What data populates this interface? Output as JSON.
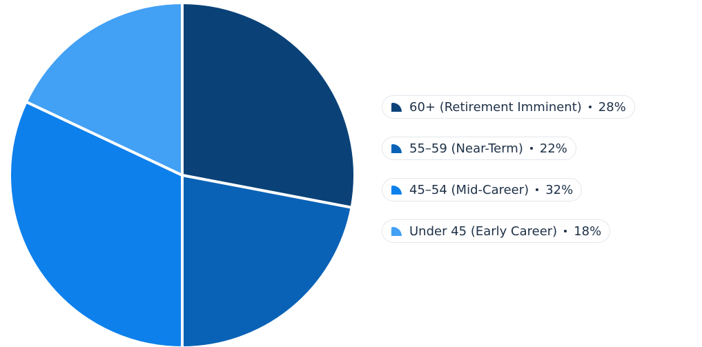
{
  "chart_data": {
    "type": "pie",
    "categories": [
      "60+ (Retirement Imminent)",
      "55–59 (Near-Term)",
      "45–54 (Mid-Career)",
      "Under 45 (Early Career)"
    ],
    "values": [
      28,
      22,
      32,
      18
    ],
    "value_labels": [
      "28%",
      "22%",
      "32%",
      "18%"
    ],
    "colors": [
      "#0a4278",
      "#0a62b6",
      "#0d80ec",
      "#42a0f5"
    ]
  }
}
